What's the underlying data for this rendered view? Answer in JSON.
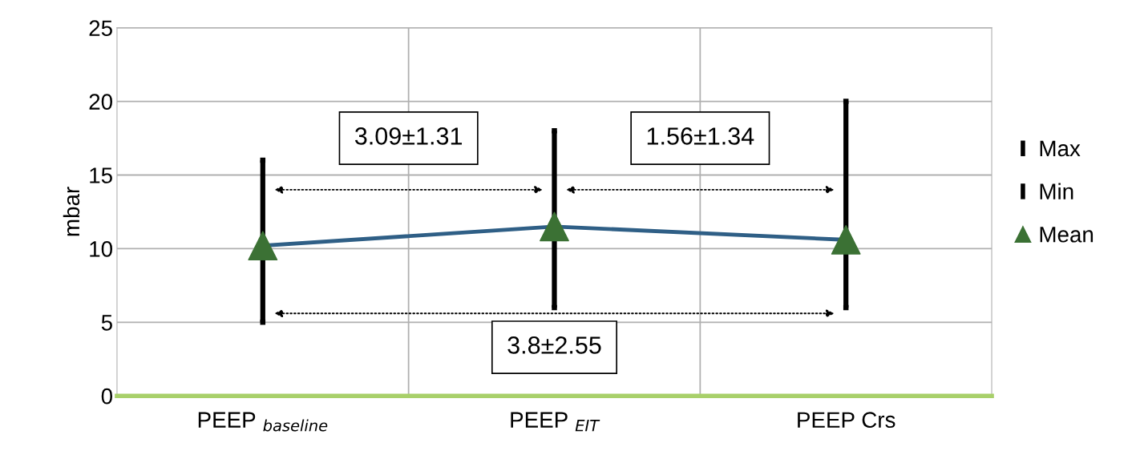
{
  "chart_data": {
    "type": "line",
    "ylabel": "mbar",
    "categories": [
      "PEEP $_{baseline}$",
      "PEEP $_{EIT}$",
      "PEEP Crs"
    ],
    "series": [
      {
        "name": "Max",
        "type": "scatter",
        "marker": "square",
        "color": "#000000",
        "values": [
          16,
          18,
          20
        ]
      },
      {
        "name": "Min",
        "type": "scatter",
        "marker": "square",
        "color": "#000000",
        "values": [
          5,
          6,
          6
        ]
      },
      {
        "color": "#2f5f86",
        "marker": "none",
        "values": [
          10.2,
          11.5,
          10.6
        ]
      },
      {
        "name": "Mean",
        "type": "scatter",
        "marker": "triangle",
        "color": "#3b7134",
        "values": [
          10.2,
          11.5,
          10.6
        ]
      }
    ],
    "annotations": [
      "3.09±1.31",
      "1.56±1.34",
      "3.8±2.55"
    ],
    "ylim": [
      0,
      25
    ],
    "yticks": [
      0,
      5,
      10,
      15,
      20,
      25
    ],
    "grid": true,
    "legend": "right"
  }
}
